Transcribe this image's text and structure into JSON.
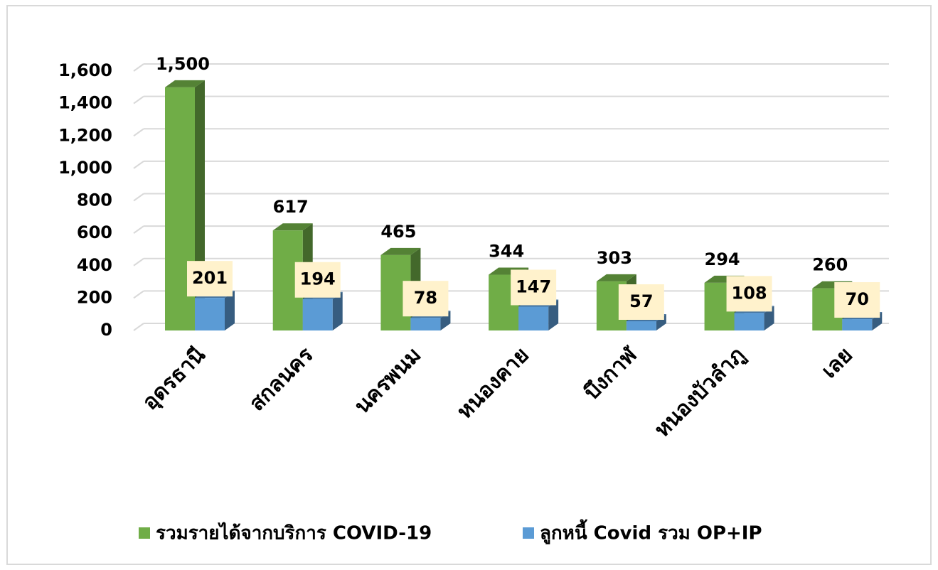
{
  "chart_data": {
    "type": "bar3d",
    "categories": [
      "อุดรธานี",
      "สกลนคร",
      "นครพนม",
      "หนองคาย",
      "บึงกาฬ",
      "หนองบัวลำภู",
      "เลย"
    ],
    "series": [
      {
        "name": "รวมรายได้จากบริการ COVID-19",
        "color": "#70ad47",
        "values": [
          1500,
          617,
          465,
          344,
          303,
          294,
          260
        ],
        "value_labels": [
          "1,500",
          "617",
          "465",
          "344",
          "303",
          "294",
          "260"
        ]
      },
      {
        "name": "ลูกหนี้ Covid รวม OP+IP",
        "color": "#5b9bd5",
        "values": [
          201,
          194,
          78,
          147,
          57,
          108,
          70
        ]
      }
    ],
    "ylim": [
      0,
      1600
    ],
    "yticks": [
      0,
      200,
      400,
      600,
      800,
      {
        "value": 1000,
        "label": "1,000"
      },
      {
        "value": 1200,
        "label": "1,200"
      },
      {
        "value": 1400,
        "label": "1,400"
      },
      {
        "value": 1600,
        "label": "1,600"
      }
    ],
    "grid": true,
    "legend": "bottom"
  }
}
